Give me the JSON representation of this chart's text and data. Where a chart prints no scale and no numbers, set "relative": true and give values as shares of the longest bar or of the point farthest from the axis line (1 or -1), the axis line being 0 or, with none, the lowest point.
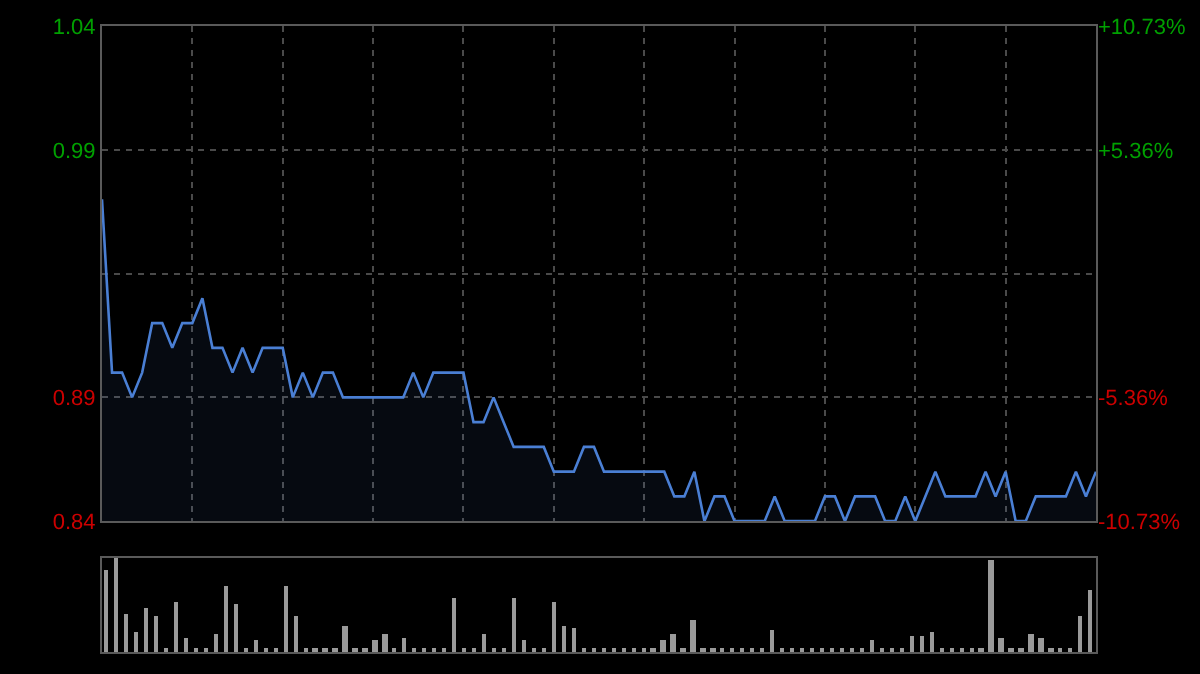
{
  "chart_data": [
    {
      "type": "area",
      "categories": [
        null,
        null,
        null,
        null,
        null,
        null,
        null,
        null,
        null,
        null,
        null,
        null,
        null,
        null,
        null,
        null,
        null,
        null,
        null,
        null,
        null,
        null,
        null,
        null,
        null,
        null,
        null,
        null,
        null,
        null,
        null,
        null,
        null,
        null,
        null,
        null,
        null,
        null,
        null,
        null,
        null,
        null,
        null,
        null,
        null,
        null,
        null,
        null,
        null,
        null,
        null,
        null,
        null,
        null,
        null,
        null,
        null,
        null,
        null,
        null,
        null,
        null,
        null,
        null,
        null,
        null,
        null,
        null,
        null,
        null,
        null,
        null,
        null,
        null,
        null,
        null,
        null,
        null,
        null,
        null,
        null,
        null,
        null,
        null,
        null,
        null,
        null,
        null,
        null,
        null,
        null,
        null,
        null,
        null,
        null,
        null,
        null,
        null,
        null,
        null
      ],
      "series": [
        {
          "color": "#4a7fd4",
          "values": [
            0.97,
            0.9,
            0.9,
            0.89,
            0.9,
            0.92,
            0.92,
            0.91,
            0.92,
            0.92,
            0.93,
            0.91,
            0.91,
            0.9,
            0.91,
            0.9,
            0.91,
            0.91,
            0.91,
            0.89,
            0.9,
            0.89,
            0.9,
            0.9,
            0.89,
            0.89,
            0.89,
            0.89,
            0.89,
            0.89,
            0.89,
            0.9,
            0.89,
            0.9,
            0.9,
            0.9,
            0.9,
            0.88,
            0.88,
            0.89,
            0.88,
            0.87,
            0.87,
            0.87,
            0.87,
            0.86,
            0.86,
            0.86,
            0.87,
            0.87,
            0.86,
            0.86,
            0.86,
            0.86,
            0.86,
            0.86,
            0.86,
            0.85,
            0.85,
            0.86,
            0.84,
            0.85,
            0.85,
            0.84,
            0.84,
            0.84,
            0.84,
            0.85,
            0.84,
            0.84,
            0.84,
            0.84,
            0.85,
            0.85,
            0.84,
            0.85,
            0.85,
            0.85,
            0.84,
            0.84,
            0.85,
            0.84,
            0.85,
            0.86,
            0.85,
            0.85,
            0.85,
            0.85,
            0.86,
            0.85,
            0.86,
            0.84,
            0.84,
            0.85,
            0.85,
            0.85,
            0.85,
            0.86,
            0.85,
            0.86
          ]
        }
      ],
      "ylim": [
        0.84,
        1.04
      ],
      "yticks": [
        0.84,
        0.89,
        {
          "value": 0.94,
          "label": null
        },
        0.99,
        1.04
      ],
      "y2lim": [
        -10.73,
        10.73
      ],
      "y2ticks": [
        {
          "value": -10.73,
          "label": "-10.73%"
        },
        {
          "value": -5.36,
          "label": "-5.36%"
        },
        {
          "value": 5.36,
          "label": "+5.36%"
        },
        {
          "value": 10.73,
          "label": "+10.73%"
        }
      ],
      "grid": true,
      "tick_labels": "y"
    },
    {
      "type": "bar",
      "relative": true,
      "tick_labels": false,
      "categories": [
        null,
        null,
        null,
        null,
        null,
        null,
        null,
        null,
        null,
        null,
        null,
        null,
        null,
        null,
        null,
        null,
        null,
        null,
        null,
        null,
        null,
        null,
        null,
        null,
        null,
        null,
        null,
        null,
        null,
        null,
        null,
        null,
        null,
        null,
        null,
        null,
        null,
        null,
        null,
        null,
        null,
        null,
        null,
        null,
        null,
        null,
        null,
        null,
        null,
        null,
        null,
        null,
        null,
        null,
        null,
        null,
        null,
        null,
        null,
        null,
        null,
        null,
        null,
        null,
        null,
        null,
        null,
        null,
        null,
        null,
        null,
        null,
        null,
        null,
        null,
        null,
        null,
        null,
        null,
        null,
        null,
        null,
        null,
        null,
        null,
        null,
        null,
        null,
        null,
        null,
        null,
        null,
        null,
        null,
        null,
        null,
        null,
        null,
        null,
        null
      ],
      "series": [
        {
          "color": "#9a9a9a",
          "values": [
            0.88,
            1.0,
            0.41,
            0.21,
            0.47,
            0.38,
            0.03,
            0.53,
            0.15,
            0.03,
            0.03,
            0.19,
            0.71,
            0.51,
            0.03,
            0.12,
            0.03,
            0.03,
            0.71,
            0.38,
            0.03,
            0.03,
            0.03,
            0.03,
            0.27,
            0.03,
            0.03,
            0.12,
            0.19,
            0.03,
            0.15,
            0.03,
            0.03,
            0.03,
            0.03,
            0.58,
            0.03,
            0.03,
            0.2,
            0.03,
            0.03,
            0.58,
            0.12,
            0.03,
            0.03,
            0.53,
            0.27,
            0.25,
            0.03,
            0.03,
            0.03,
            0.03,
            0.03,
            0.03,
            0.03,
            0.03,
            0.12,
            0.2,
            0.03,
            0.33,
            0.03,
            0.03,
            0.03,
            0.03,
            0.03,
            0.03,
            0.03,
            0.24,
            0.03,
            0.03,
            0.03,
            0.03,
            0.03,
            0.03,
            0.03,
            0.03,
            0.03,
            0.12,
            0.03,
            0.03,
            0.03,
            0.18,
            0.18,
            0.21,
            0.03,
            0.03,
            0.03,
            0.03,
            0.03,
            0.98,
            0.15,
            0.03,
            0.03,
            0.2,
            0.14,
            0.03,
            0.03,
            0.03,
            0.38,
            0.65
          ]
        }
      ]
    }
  ]
}
